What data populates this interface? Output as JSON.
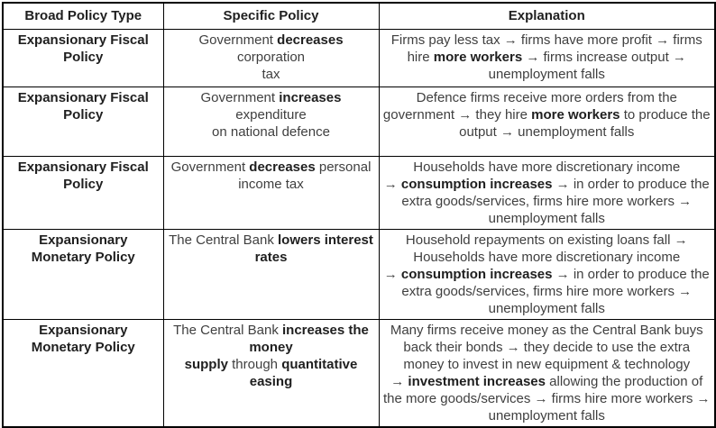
{
  "colors": {
    "border": "#000000",
    "text": "#3f3f3f",
    "bold_text": "#1f1f1f",
    "background": "#ffffff"
  },
  "table": {
    "headers": {
      "type": "Broad Policy Type",
      "policy": "Specific Policy",
      "explanation": "Explanation"
    },
    "rows": [
      {
        "type": [
          {
            "t": "Expansionary Fiscal\nPolicy",
            "b": true
          }
        ],
        "policy": [
          {
            "t": "Government ",
            "b": false
          },
          {
            "t": "decreases",
            "b": true
          },
          {
            "t": " corporation\ntax",
            "b": false
          }
        ],
        "explanation": [
          {
            "t": "Firms pay less tax → firms have more profit → firms hire ",
            "b": false
          },
          {
            "t": "more workers",
            "b": true
          },
          {
            "t": " → firms increase output → unemployment falls",
            "b": false
          }
        ]
      },
      {
        "type": [
          {
            "t": "Expansionary Fiscal\nPolicy",
            "b": true
          }
        ],
        "policy": [
          {
            "t": "Government ",
            "b": false
          },
          {
            "t": "increases",
            "b": true
          },
          {
            "t": " expenditure\non national defence",
            "b": false
          }
        ],
        "explanation": [
          {
            "t": "Defence firms receive more orders from the government → they hire ",
            "b": false
          },
          {
            "t": "more workers",
            "b": true
          },
          {
            "t": " to produce the output → unemployment falls",
            "b": false
          }
        ]
      },
      {
        "type": [
          {
            "t": "Expansionary Fiscal\nPolicy",
            "b": true
          }
        ],
        "policy": [
          {
            "t": "Government ",
            "b": false
          },
          {
            "t": "decreases",
            "b": true
          },
          {
            "t": " personal\nincome tax",
            "b": false
          }
        ],
        "explanation": [
          {
            "t": "Households have more discretionary income\n→ ",
            "b": false
          },
          {
            "t": "consumption increases",
            "b": true
          },
          {
            "t": " → in order to produce the extra goods/services, firms hire more workers → unemployment falls",
            "b": false
          }
        ]
      },
      {
        "type": [
          {
            "t": "Expansionary\nMonetary Policy",
            "b": true
          }
        ],
        "policy": [
          {
            "t": "The Central Bank ",
            "b": false
          },
          {
            "t": "lowers interest\nrates",
            "b": true
          }
        ],
        "explanation": [
          {
            "t": "Household repayments on existing loans fall → Households have more discretionary income\n→ ",
            "b": false
          },
          {
            "t": "consumption increases",
            "b": true
          },
          {
            "t": " → in order to produce the extra goods/services, firms hire more workers → unemployment falls",
            "b": false
          }
        ]
      },
      {
        "type": [
          {
            "t": "Expansionary\nMonetary Policy",
            "b": true
          }
        ],
        "policy": [
          {
            "t": "The Central Bank ",
            "b": false
          },
          {
            "t": "increases the money\nsupply",
            "b": true
          },
          {
            "t": " through ",
            "b": false
          },
          {
            "t": "quantitative easing",
            "b": true
          }
        ],
        "explanation": [
          {
            "t": "Many firms receive money as the Central Bank buys back their bonds → they decide to use the extra money to invest in new equipment & technology\n→ ",
            "b": false
          },
          {
            "t": "investment increases",
            "b": true
          },
          {
            "t": " allowing the production of the more goods/services → firms hire more workers → unemployment falls",
            "b": false
          }
        ]
      }
    ]
  }
}
